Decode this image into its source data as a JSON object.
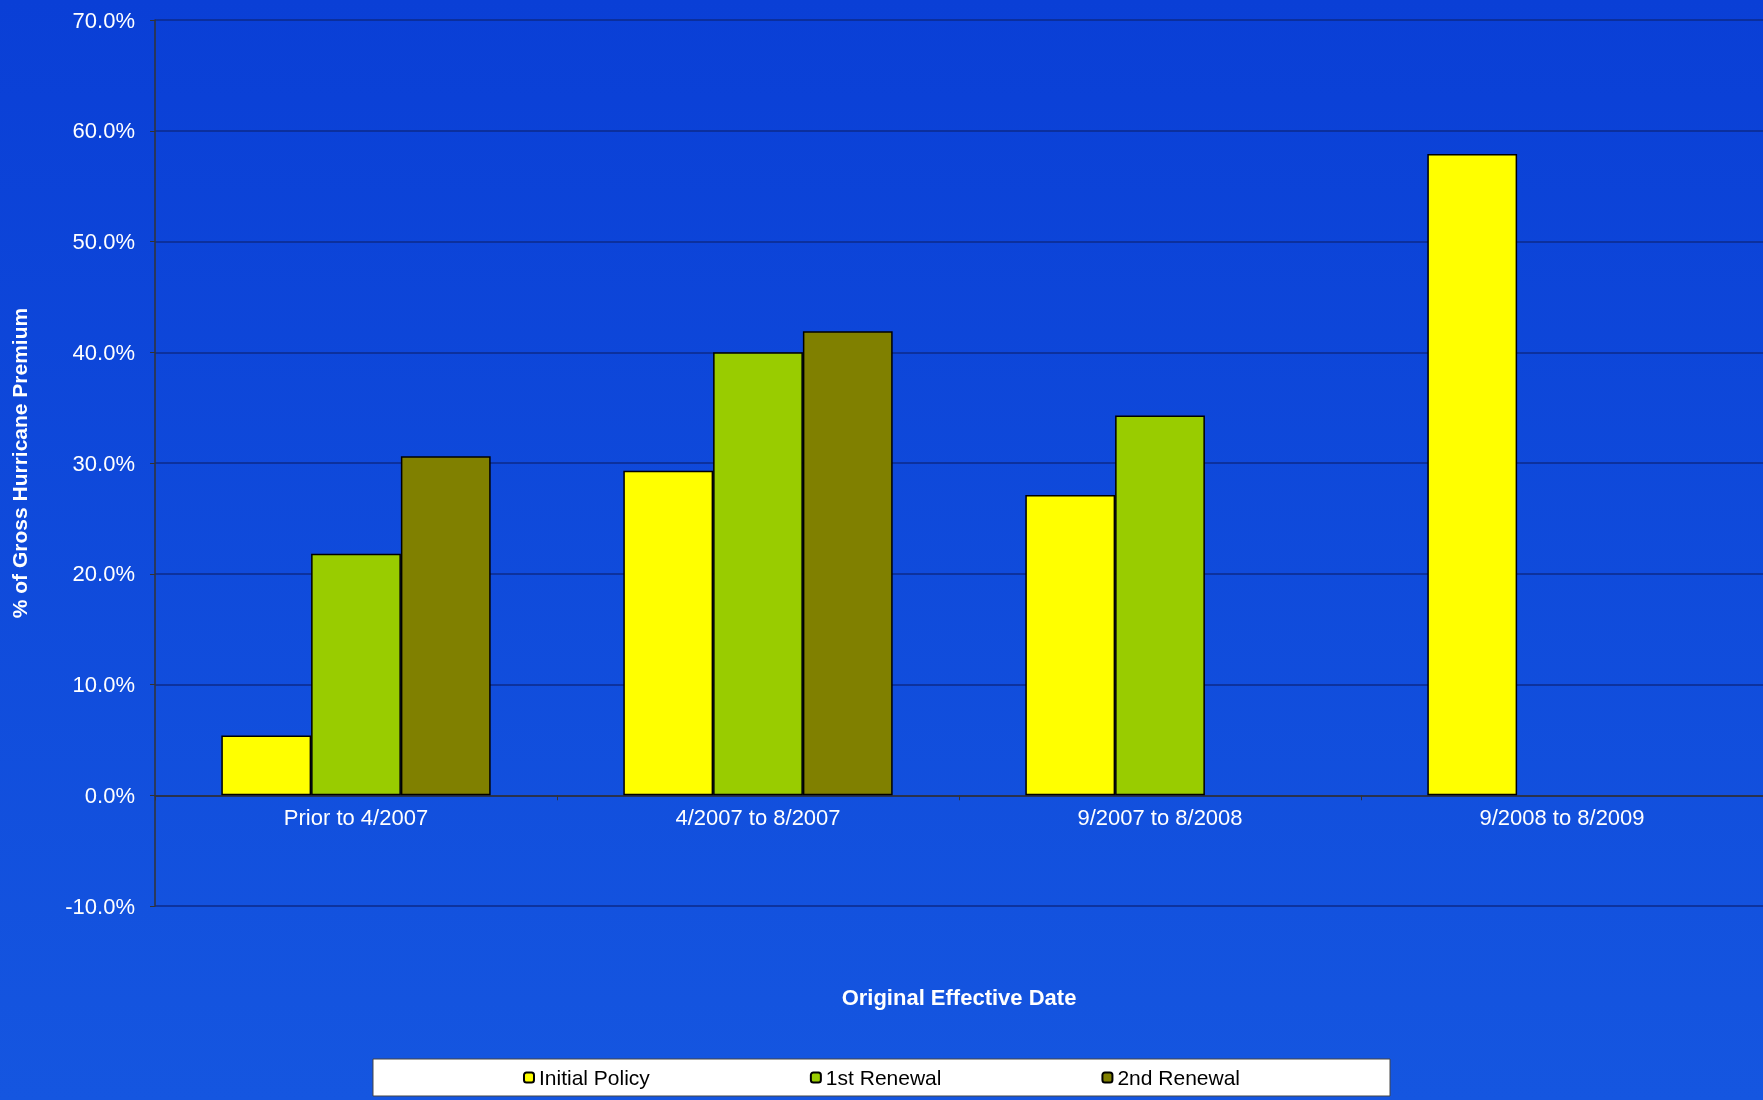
{
  "chart_data": {
    "type": "bar",
    "xlabel": "Original Effective Date",
    "ylabel": "% of Gross Hurricane Premium",
    "categories": [
      "Prior to 4/2007",
      "4/2007 to 8/2007",
      "9/2007 to 8/2008",
      "9/2008 to 8/2009"
    ],
    "series": [
      {
        "name": "Initial Policy",
        "color": "#ffff00",
        "values": [
          5.4,
          29.3,
          27.1,
          57.9
        ]
      },
      {
        "name": "1st Renewal",
        "color": "#99cc00",
        "values": [
          21.8,
          40.0,
          34.3,
          null
        ]
      },
      {
        "name": "2nd Renewal",
        "color": "#808000",
        "values": [
          30.6,
          41.9,
          null,
          null
        ]
      }
    ],
    "ylim": [
      -10,
      70
    ],
    "yticks": [
      {
        "value": -10,
        "label": "-10.0%"
      },
      {
        "value": 0,
        "label": "0.0%"
      },
      {
        "value": 10,
        "label": "10.0%"
      },
      {
        "value": 20,
        "label": "20.0%"
      },
      {
        "value": 30,
        "label": "30.0%"
      },
      {
        "value": 40,
        "label": "40.0%"
      },
      {
        "value": 50,
        "label": "50.0%"
      },
      {
        "value": 60,
        "label": "60.0%"
      },
      {
        "value": 70,
        "label": "70.0%"
      }
    ],
    "grid": "y",
    "legend": "bottom"
  }
}
